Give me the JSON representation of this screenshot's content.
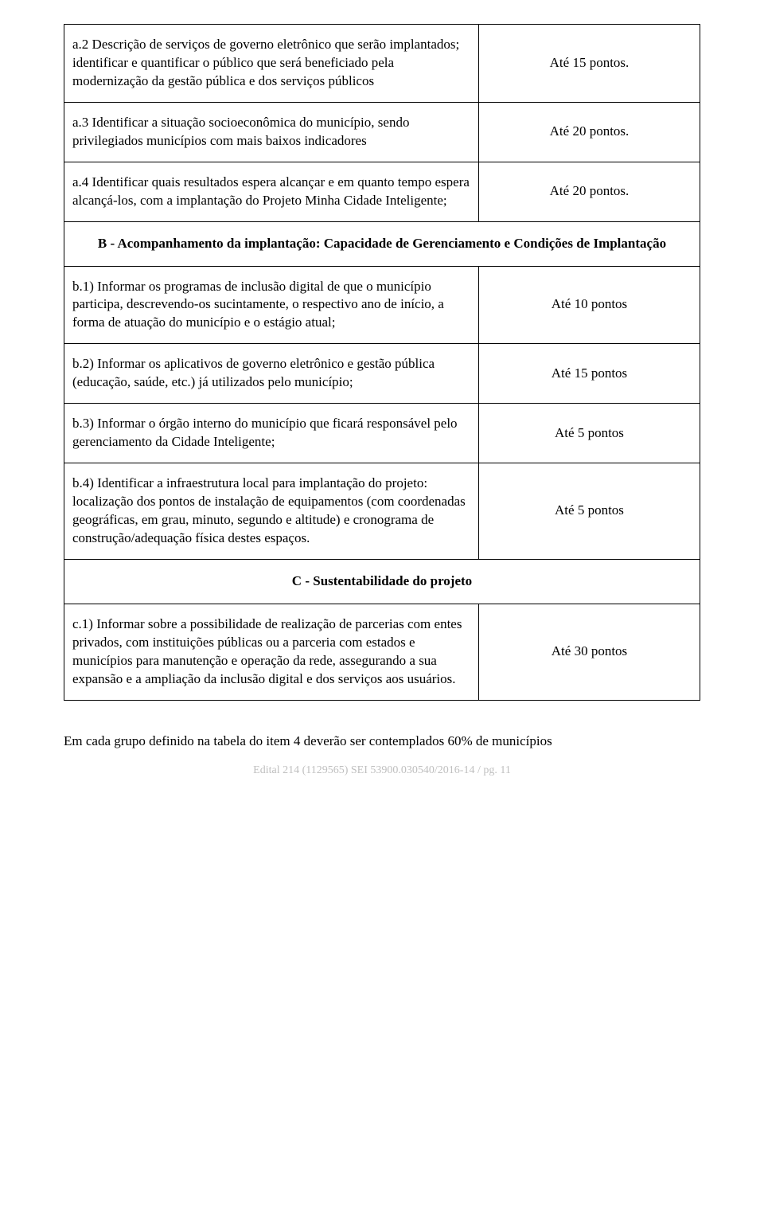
{
  "rows": [
    {
      "type": "item",
      "desc": "a.2 Descrição de serviços de governo eletrônico que serão implantados; identificar e quantificar o público que será beneficiado pela modernização da gestão pública e dos serviços públicos",
      "points": "Até 15 pontos."
    },
    {
      "type": "item",
      "desc": "a.3 Identificar a situação socioeconômica do município, sendo privilegiados municípios com mais baixos indicadores",
      "points": "Até 20 pontos."
    },
    {
      "type": "item",
      "desc": "a.4 Identificar quais resultados espera alcançar e em quanto tempo espera alcançá-los, com a implantação do Projeto Minha Cidade Inteligente;",
      "points": "Até 20 pontos."
    },
    {
      "type": "section",
      "title": "B - Acompanhamento da implantação: Capacidade de Gerenciamento e Condições de Implantação"
    },
    {
      "type": "item",
      "desc": "b.1) Informar os programas de inclusão digital de que o município participa, descrevendo-os sucintamente, o respectivo ano de início, a forma de atuação do município e o estágio atual;",
      "points": "Até 10 pontos"
    },
    {
      "type": "item",
      "desc": "b.2) Informar os aplicativos de governo eletrônico e gestão pública (educação, saúde, etc.) já utilizados pelo município;",
      "points": "Até 15 pontos"
    },
    {
      "type": "item",
      "desc": "b.3) Informar o órgão interno do município que ficará responsável pelo gerenciamento da Cidade Inteligente;",
      "points": "Até 5 pontos"
    },
    {
      "type": "item",
      "desc": "b.4) Identificar a infraestrutura local para implantação do projeto: localização dos pontos de instalação de equipamentos (com coordenadas geográficas, em grau, minuto, segundo e altitude) e cronograma de construção/adequação física destes espaços.",
      "points": "Até 5 pontos"
    },
    {
      "type": "section",
      "title": "C - Sustentabilidade do projeto"
    },
    {
      "type": "item",
      "desc": "c.1) Informar sobre a possibilidade de realização de parcerias com entes privados, com instituições públicas ou a parceria com estados e municípios para manutenção e operação da rede, assegurando a sua expansão e a ampliação da inclusão digital e dos serviços aos usuários.",
      "points": "Até 30 pontos"
    }
  ],
  "footnote": "Em cada grupo definido na tabela do item 4 deverão ser contemplados 60% de municípios",
  "footer": "Edital 214 (1129565)         SEI 53900.030540/2016-14 / pg. 11"
}
